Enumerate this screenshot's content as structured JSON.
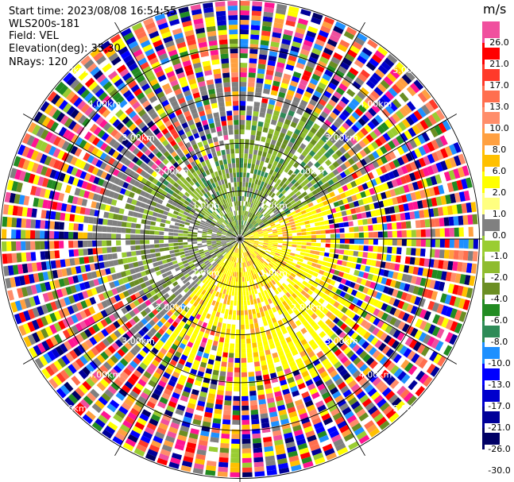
{
  "header": {
    "start_time": "Start time: 2023/08/08 16:54:55",
    "instrument": "WLS200s-181",
    "field": "Field: VEL",
    "elevation": "Elevation(deg): 35.30",
    "nrays": "NRays: 120"
  },
  "colorbar": {
    "unit": "m/s",
    "levels": [
      {
        "label": "26.0",
        "color": "#f0509e"
      },
      {
        "label": "21.0",
        "color": "#ff0000"
      },
      {
        "label": "17.0",
        "color": "#ff3a2a"
      },
      {
        "label": "13.0",
        "color": "#ff6f4f"
      },
      {
        "label": "10.0",
        "color": "#ff8d6a"
      },
      {
        "label": "8.0",
        "color": "#ffa040"
      },
      {
        "label": "6.0",
        "color": "#ffc000"
      },
      {
        "label": "2.0",
        "color": "#ffff00"
      },
      {
        "label": "1.0",
        "color": "#ffff80"
      },
      {
        "label": "0.0",
        "color": "#808080"
      },
      {
        "label": "-1.0",
        "color": "#9acd32"
      },
      {
        "label": "-2.0",
        "color": "#8fbc2f"
      },
      {
        "label": "-4.0",
        "color": "#6b8e23"
      },
      {
        "label": "-6.0",
        "color": "#228b22"
      },
      {
        "label": "-8.0",
        "color": "#2e8b57"
      },
      {
        "label": "-10.0",
        "color": "#1e90ff"
      },
      {
        "label": "-13.0",
        "color": "#0000ff"
      },
      {
        "label": "-17.0",
        "color": "#0000cd"
      },
      {
        "label": "-21.0",
        "color": "#000099"
      },
      {
        "label": "-26.0",
        "color": "#000066"
      },
      {
        "label": "-30.0",
        "color": "#ffffff"
      }
    ]
  },
  "chart_data": {
    "type": "heatmap",
    "projection": "polar-ppi",
    "nrays": 120,
    "range_rings_km": [
      1.0,
      2.0,
      3.0,
      4.0,
      5.0
    ],
    "range_ring_labels": [
      "1.0km",
      "2.00km",
      "3.00km",
      "4.00km",
      "5.00km"
    ],
    "azimuth_lines_deg": [
      0,
      30,
      60,
      90,
      120,
      150,
      180,
      210,
      240,
      270,
      300,
      330
    ],
    "field": "VEL",
    "units": "m/s",
    "vmin": -30.0,
    "vmax": 26.0
  }
}
